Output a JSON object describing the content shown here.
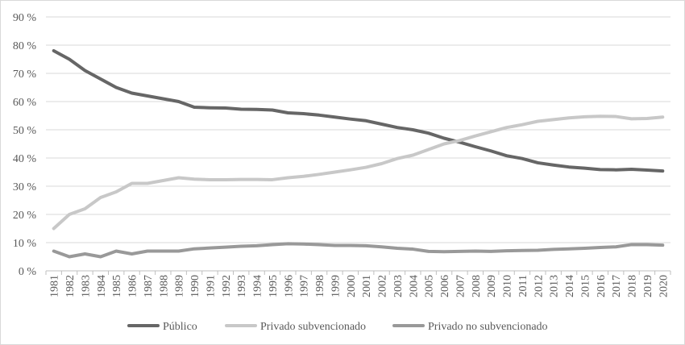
{
  "chart_data": {
    "type": "line",
    "x": [
      1981,
      1982,
      1983,
      1984,
      1985,
      1986,
      1987,
      1988,
      1989,
      1990,
      1991,
      1992,
      1993,
      1994,
      1995,
      1996,
      1997,
      1998,
      1999,
      2000,
      2001,
      2002,
      2003,
      2004,
      2005,
      2006,
      2007,
      2008,
      2009,
      2010,
      2011,
      2012,
      2013,
      2014,
      2015,
      2016,
      2017,
      2018,
      2019,
      2020
    ],
    "x_tick_labels": [
      "1981",
      "1982",
      "1983",
      "1984",
      "1985",
      "1986",
      "1987",
      "1988",
      "1989",
      "1990",
      "1991",
      "1992",
      "1993",
      "1994",
      "1995",
      "1996",
      "1997",
      "1998",
      "1999",
      "2000",
      "2001",
      "2002",
      "2003",
      "2004",
      "2005",
      "2006",
      "2007",
      "2008",
      "2009",
      "2010",
      "2011",
      "2012",
      "2013",
      "2014",
      "2015",
      "2016",
      "2017",
      "2018",
      "2019",
      "2020"
    ],
    "y_tick_labels": [
      "0 %",
      "10 %",
      "20 %",
      "30 %",
      "40 %",
      "50 %",
      "60 %",
      "70 %",
      "80 %",
      "90 %"
    ],
    "ylim": [
      0,
      90
    ],
    "grid": true,
    "legend_position": "bottom",
    "series": [
      {
        "name": "Público",
        "color": "#666666",
        "values": [
          78,
          75,
          71,
          68,
          65,
          63,
          62,
          61,
          60,
          58,
          57.8,
          57.7,
          57.3,
          57.2,
          57,
          56,
          55.7,
          55.2,
          54.5,
          53.8,
          53.2,
          52,
          50.8,
          50,
          48.8,
          47,
          45.6,
          44,
          42.5,
          40.8,
          39.8,
          38.3,
          37.5,
          36.8,
          36.4,
          35.9,
          35.8,
          36,
          35.7,
          35.4
        ]
      },
      {
        "name": "Privado subvencionado",
        "color": "#c8c8c8",
        "values": [
          15,
          20,
          22,
          26,
          28,
          31,
          31,
          32,
          33,
          32.5,
          32.3,
          32.3,
          32.4,
          32.4,
          32.3,
          33,
          33.5,
          34.2,
          35,
          35.8,
          36.7,
          38,
          39.8,
          41,
          43,
          45,
          46.2,
          47.8,
          49.3,
          50.8,
          51.8,
          53,
          53.6,
          54.2,
          54.6,
          54.8,
          54.7,
          53.9,
          54,
          54.5
        ]
      },
      {
        "name": "Privado no subvencionado",
        "color": "#999999",
        "values": [
          7,
          5,
          6,
          5,
          7,
          6,
          7,
          7,
          7,
          7.8,
          8.1,
          8.4,
          8.7,
          8.9,
          9.3,
          9.6,
          9.5,
          9.3,
          9,
          9,
          8.9,
          8.5,
          8,
          7.7,
          6.9,
          6.8,
          6.9,
          7,
          6.9,
          7.1,
          7.2,
          7.3,
          7.6,
          7.8,
          8,
          8.3,
          8.5,
          9.3,
          9.3,
          9.1
        ]
      }
    ]
  }
}
